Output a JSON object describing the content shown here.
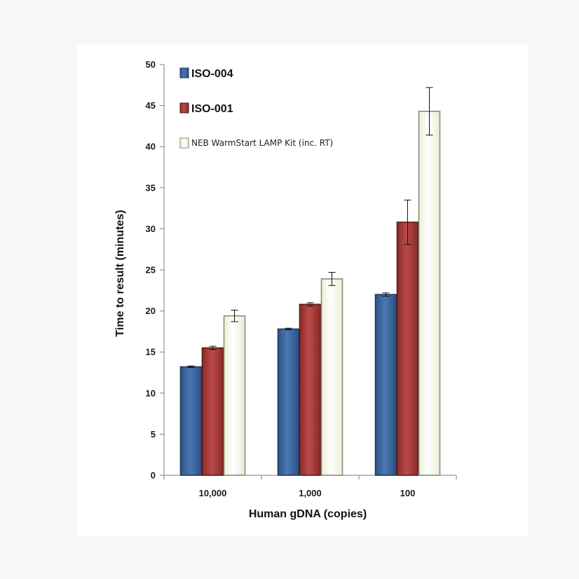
{
  "chart_data": {
    "type": "bar",
    "title": "",
    "xlabel": "Human gDNA (copies)",
    "ylabel": "Time to result (minutes)",
    "ylim": [
      0,
      50
    ],
    "yticks": [
      "0",
      "5",
      "10",
      "15",
      "20",
      "25",
      "30",
      "35",
      "40",
      "45",
      "50"
    ],
    "categories": [
      "10,000",
      "1,000",
      "100"
    ],
    "legend_position": "top-left",
    "series": [
      {
        "name": "ISO-004",
        "color": "#3d67a0",
        "values": [
          13.2,
          17.8,
          22.0
        ],
        "errors": [
          0.1,
          0.1,
          0.2
        ]
      },
      {
        "name": "ISO-001",
        "color": "#a63b38",
        "values": [
          15.5,
          20.8,
          30.8
        ],
        "errors": [
          0.2,
          0.2,
          2.7
        ]
      },
      {
        "name": "NEB WarmStart LAMP Kit (inc. RT)",
        "color": "#f8f8e8",
        "values": [
          19.4,
          23.9,
          44.3
        ],
        "errors": [
          0.7,
          0.8,
          2.9
        ]
      }
    ]
  }
}
